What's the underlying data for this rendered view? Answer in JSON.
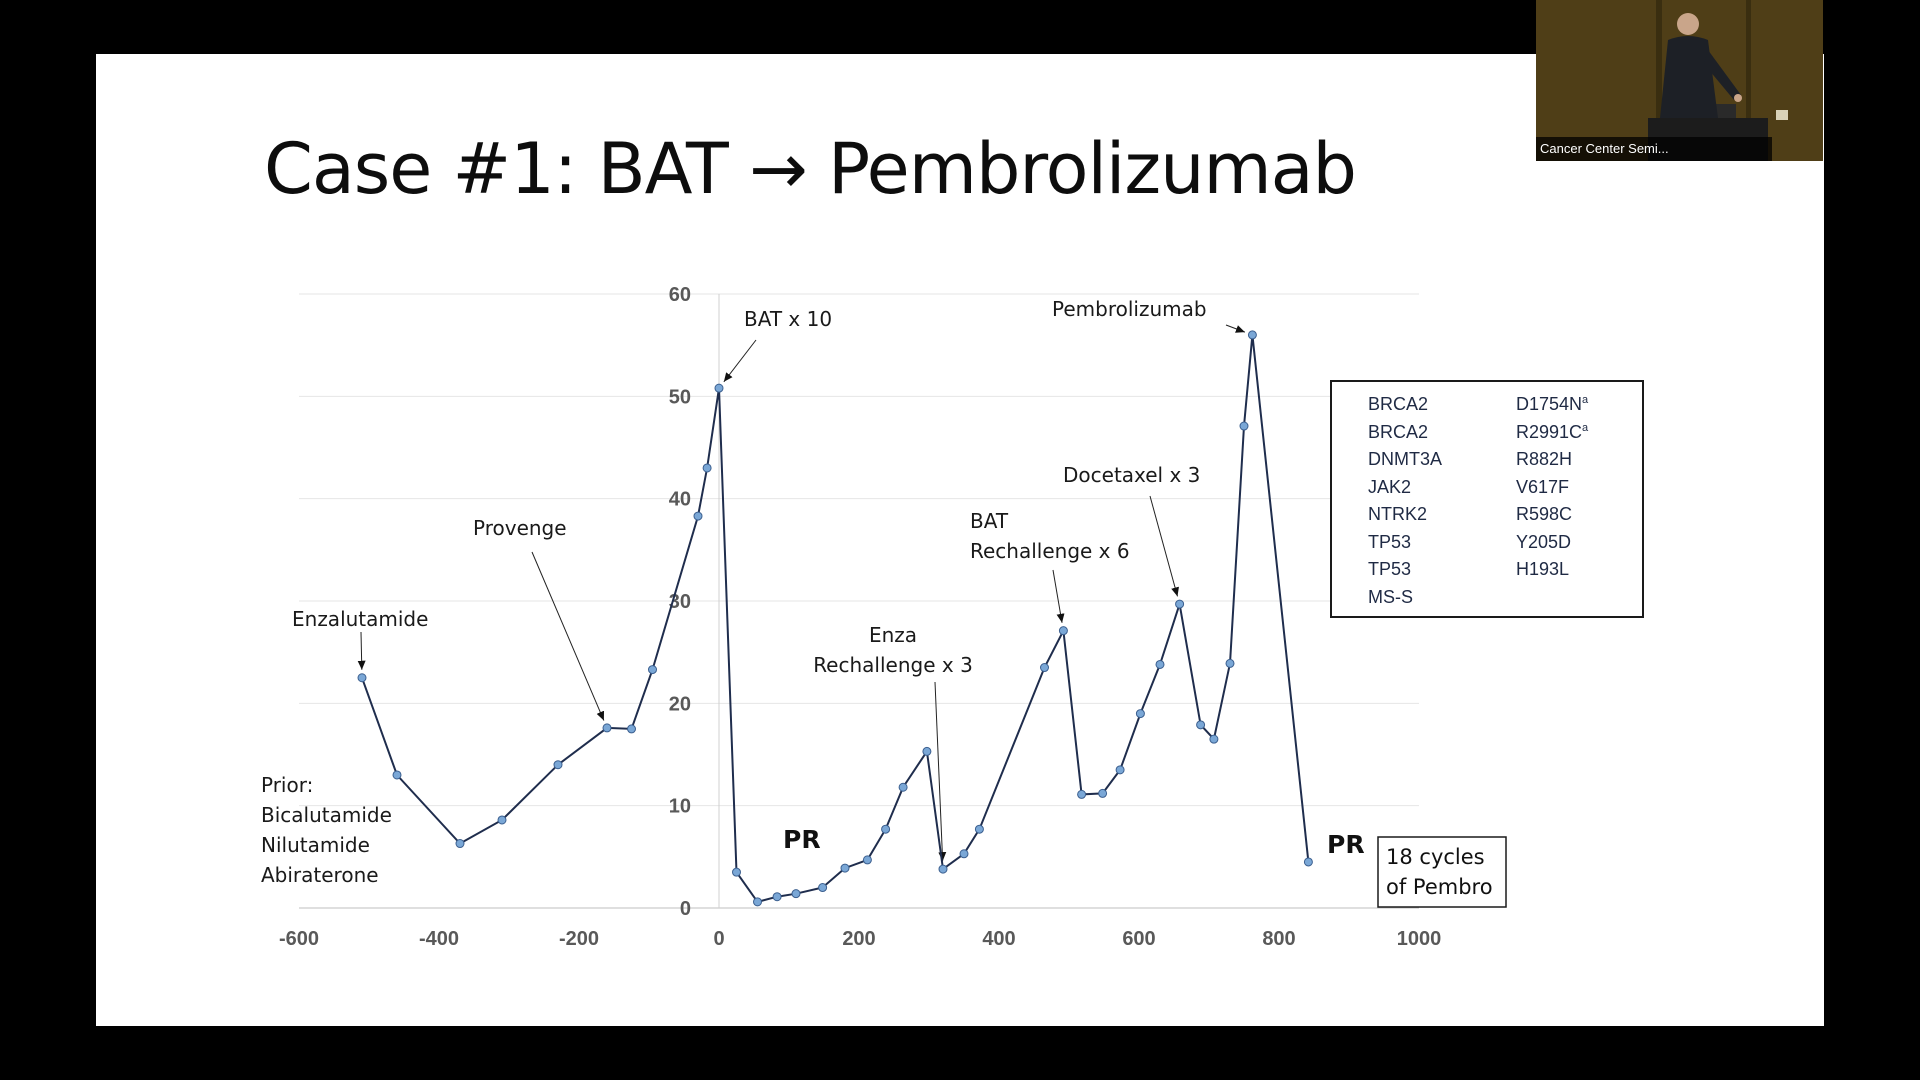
{
  "slide": {
    "title": "Case #1:  BAT → Pembrolizumab"
  },
  "chart_data": {
    "type": "line",
    "title": "",
    "xlabel": "",
    "ylabel": "",
    "xlim": [
      -600,
      1000
    ],
    "ylim": [
      0,
      60
    ],
    "x_ticks": [
      "-600",
      "-400",
      "-200",
      "0",
      "200",
      "400",
      "600",
      "800",
      "1000"
    ],
    "y_ticks": [
      "0",
      "10",
      "20",
      "30",
      "40",
      "50",
      "60"
    ],
    "grid": "horizontal",
    "series": [
      {
        "color": "#1f2d4d",
        "marker_color": "#7aa7d6",
        "points": [
          [
            -510,
            22.5
          ],
          [
            -460,
            13
          ],
          [
            -370,
            6.3
          ],
          [
            -310,
            8.6
          ],
          [
            -230,
            14
          ],
          [
            -160,
            17.6
          ],
          [
            -125,
            17.5
          ],
          [
            -95,
            23.3
          ],
          [
            -30,
            38.3
          ],
          [
            -17,
            43
          ],
          [
            0,
            50.8
          ],
          [
            25,
            3.5
          ],
          [
            55,
            0.6
          ],
          [
            83,
            1.1
          ],
          [
            110,
            1.4
          ],
          [
            148,
            2
          ],
          [
            180,
            3.9
          ],
          [
            212,
            4.7
          ],
          [
            238,
            7.7
          ],
          [
            263,
            11.8
          ],
          [
            297,
            15.3
          ],
          [
            320,
            3.8
          ],
          [
            350,
            5.3
          ],
          [
            372,
            7.7
          ],
          [
            465,
            23.5
          ],
          [
            492,
            27.1
          ],
          [
            518,
            11.1
          ],
          [
            548,
            11.2
          ],
          [
            573,
            13.5
          ],
          [
            602,
            19
          ],
          [
            630,
            23.8
          ],
          [
            658,
            29.7
          ],
          [
            688,
            17.9
          ],
          [
            707,
            16.5
          ],
          [
            730,
            23.9
          ],
          [
            750,
            47.1
          ],
          [
            762,
            56
          ],
          [
            842,
            4.5
          ]
        ]
      }
    ],
    "annotations": [
      {
        "text": "Enzalutamide",
        "x": -510,
        "y": 22.5
      },
      {
        "text": "Provenge",
        "x": -160,
        "y": 17.6
      },
      {
        "text": "BAT x 10",
        "x": 0,
        "y": 50.8
      },
      {
        "text": "Enza Rechallenge x 3",
        "x": 320,
        "y": 3.8
      },
      {
        "text": "BAT Rechallenge x 6",
        "x": 492,
        "y": 27.1
      },
      {
        "text": "Docetaxel x 3",
        "x": 658,
        "y": 29.7
      },
      {
        "text": "Pembrolizumab",
        "x": 762,
        "y": 56
      }
    ],
    "labels": {
      "enzalutamide": "Enzalutamide",
      "provenge": "Provenge",
      "bat10": "BAT x 10",
      "enza_l1": "Enza",
      "enza_l2": "Rechallenge x 3",
      "bat_l1": "BAT",
      "bat_l2": "Rechallenge x 6",
      "docetaxel": "Docetaxel x 3",
      "pembro": "Pembrolizumab",
      "prior_l1": "Prior:",
      "prior_l2": "Bicalutamide",
      "prior_l3": "Nilutamide",
      "prior_l4": "Abiraterone",
      "pr1": "PR",
      "pr2": "PR",
      "cycles_l1": "18 cycles",
      "cycles_l2": "of Pembro"
    }
  },
  "mutations": [
    {
      "gene": "BRCA2",
      "variant": "D1754N",
      "sup": "a"
    },
    {
      "gene": "BRCA2",
      "variant": "R2991C",
      "sup": "a"
    },
    {
      "gene": "DNMT3A",
      "variant": "R882H",
      "sup": ""
    },
    {
      "gene": "JAK2",
      "variant": "V617F",
      "sup": ""
    },
    {
      "gene": "NTRK2",
      "variant": "R598C",
      "sup": ""
    },
    {
      "gene": "TP53",
      "variant": "Y205D",
      "sup": ""
    },
    {
      "gene": "TP53",
      "variant": "H193L",
      "sup": ""
    },
    {
      "gene": "MS-S",
      "variant": "",
      "sup": ""
    }
  ],
  "webcam": {
    "label": "Cancer Center Semi..."
  }
}
